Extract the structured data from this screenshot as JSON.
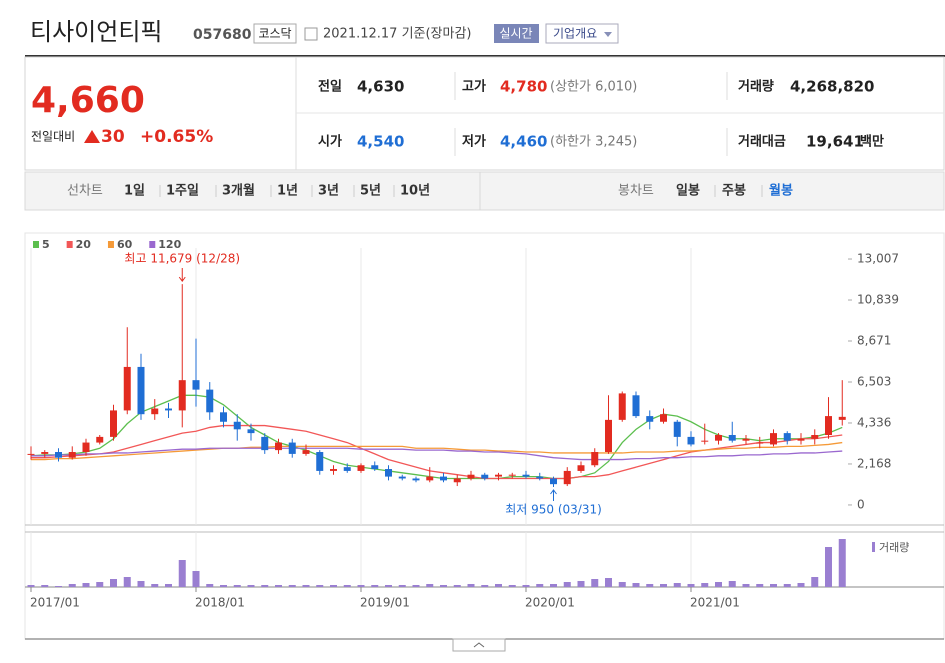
{
  "header": {
    "name": "티사이언티픽",
    "code": "057680",
    "market": "코스닥",
    "date": "2021.12.17 기준(장마감)",
    "realtime": "실시간",
    "overview": "기업개요"
  },
  "quote": {
    "price": "4,660",
    "change_label": "전일대비",
    "change": "30",
    "change_rate": "+0.65%",
    "items": [
      {
        "label": "전일",
        "value": "4,630"
      },
      {
        "label": "고가",
        "value": "4,780",
        "extra": "(상한가 6,010)"
      },
      {
        "label": "거래량",
        "value": "4,268,820"
      },
      {
        "label": "시가",
        "value": "4,540"
      },
      {
        "label": "저가",
        "value": "4,460",
        "extra": "(하한가 3,245)"
      },
      {
        "label": "거래대금",
        "value": "19,641",
        "extra": "백만"
      }
    ]
  },
  "tabs": {
    "line_label": "선차트",
    "line": [
      "1일",
      "1주일",
      "3개월",
      "1년",
      "3년",
      "5년",
      "10년"
    ],
    "candle_label": "봉차트",
    "candle": [
      "일봉",
      "주봉",
      "월봉"
    ]
  },
  "chart_data": {
    "type": "candlestick",
    "categories": [
      "2017/01",
      null,
      null,
      null,
      null,
      null,
      null,
      null,
      null,
      null,
      null,
      null,
      "2018/01",
      null,
      null,
      null,
      null,
      null,
      null,
      null,
      null,
      null,
      null,
      null,
      "2019/01",
      null,
      null,
      null,
      null,
      null,
      null,
      null,
      null,
      null,
      null,
      null,
      "2020/01",
      null,
      null,
      null,
      null,
      null,
      null,
      null,
      null,
      null,
      null,
      null,
      "2021/01",
      null,
      null,
      null,
      null,
      null,
      null,
      null,
      null,
      null,
      null,
      null
    ],
    "open": [
      2700,
      2700,
      2800,
      2500,
      2800,
      3300,
      3600,
      5000,
      7300,
      4800,
      5100,
      5000,
      6600,
      6100,
      4900,
      4400,
      4000,
      3600,
      2900,
      3300,
      2700,
      2800,
      1800,
      2000,
      1800,
      2100,
      1900,
      1500,
      1400,
      1300,
      1500,
      1200,
      1400,
      1600,
      1500,
      1600,
      1600,
      1500,
      1400,
      1100,
      1800,
      2100,
      2800,
      4500,
      5800,
      4700,
      4400,
      4400,
      3600,
      3400,
      3400,
      3700,
      3400,
      3300,
      3200,
      3800,
      3400,
      3500,
      3700,
      4500
    ],
    "high": [
      3100,
      2900,
      3000,
      3100,
      3500,
      3700,
      5300,
      9400,
      8000,
      5600,
      5400,
      11679,
      8800,
      6500,
      5200,
      4800,
      4300,
      3800,
      3500,
      3500,
      3200,
      2900,
      2100,
      2200,
      2200,
      2300,
      2100,
      1600,
      1500,
      2000,
      1700,
      1600,
      1800,
      1700,
      1700,
      1700,
      1800,
      1700,
      1500,
      2000,
      2300,
      3000,
      5800,
      6000,
      6000,
      5000,
      5100,
      4500,
      3900,
      4300,
      3800,
      4400,
      3700,
      3600,
      4000,
      3900,
      3800,
      4000,
      5700,
      6600
    ],
    "low": [
      2400,
      2500,
      2300,
      2400,
      2600,
      3200,
      3400,
      4800,
      4500,
      4500,
      4600,
      4100,
      5200,
      4500,
      4100,
      3400,
      3400,
      2700,
      2700,
      2500,
      2600,
      1600,
      1600,
      1700,
      1700,
      1800,
      1300,
      1300,
      1200,
      1200,
      1200,
      1000,
      1300,
      1300,
      1300,
      1400,
      1400,
      1300,
      950,
      1000,
      1700,
      2000,
      2700,
      4400,
      4600,
      4000,
      4300,
      3100,
      3100,
      3200,
      3200,
      3300,
      3200,
      3000,
      3100,
      3200,
      3200,
      3200,
      3500,
      4200
    ],
    "close": [
      2700,
      2800,
      2500,
      2800,
      3300,
      3600,
      5000,
      7300,
      4800,
      5100,
      5000,
      6600,
      6100,
      4900,
      4400,
      4000,
      3800,
      2900,
      3300,
      2700,
      2900,
      1800,
      1900,
      1800,
      2100,
      1900,
      1500,
      1400,
      1300,
      1500,
      1300,
      1400,
      1600,
      1400,
      1600,
      1600,
      1500,
      1400,
      1100,
      1800,
      2100,
      2800,
      4500,
      5900,
      4700,
      4400,
      4800,
      3600,
      3200,
      3400,
      3700,
      3400,
      3500,
      3300,
      3800,
      3400,
      3500,
      3700,
      4700,
      4660
    ],
    "up_color": "#e22b20",
    "down_color": "#1f6ed4",
    "series": [
      {
        "name": "5",
        "color": "#5cbf4e",
        "values": [
          2600,
          2650,
          2650,
          2700,
          2800,
          3000,
          3500,
          4300,
          4900,
          5200,
          5500,
          5800,
          5800,
          5700,
          5300,
          4700,
          4100,
          3700,
          3300,
          3100,
          2900,
          2600,
          2300,
          2100,
          2000,
          1900,
          1800,
          1700,
          1600,
          1500,
          1400,
          1400,
          1400,
          1400,
          1400,
          1500,
          1500,
          1500,
          1400,
          1400,
          1500,
          1700,
          2300,
          3300,
          4000,
          4500,
          4800,
          4700,
          4400,
          4000,
          3700,
          3500,
          3500,
          3400,
          3500,
          3500,
          3500,
          3600,
          3800,
          4100
        ]
      },
      {
        "name": "20",
        "color": "#f25757",
        "values": [
          2500,
          2500,
          2550,
          2600,
          2650,
          2700,
          2800,
          3000,
          3200,
          3400,
          3600,
          3800,
          3900,
          4100,
          4200,
          4200,
          4200,
          4200,
          4100,
          4000,
          3900,
          3700,
          3500,
          3300,
          3000,
          2700,
          2400,
          2200,
          2000,
          1800,
          1700,
          1600,
          1500,
          1400,
          1400,
          1400,
          1400,
          1400,
          1400,
          1400,
          1500,
          1500,
          1600,
          1800,
          2000,
          2200,
          2400,
          2600,
          2800,
          2900,
          3000,
          3100,
          3200,
          3300,
          3300,
          3400,
          3500,
          3500,
          3600,
          3700
        ]
      },
      {
        "name": "60",
        "color": "#f59a38",
        "values": [
          2400,
          2400,
          2450,
          2450,
          2500,
          2550,
          2600,
          2650,
          2700,
          2750,
          2800,
          2850,
          2900,
          2950,
          3000,
          3000,
          3050,
          3050,
          3100,
          3100,
          3100,
          3100,
          3100,
          3100,
          3100,
          3100,
          3100,
          3100,
          3000,
          3000,
          3000,
          2950,
          2900,
          2900,
          2850,
          2850,
          2800,
          2800,
          2750,
          2750,
          2750,
          2750,
          2750,
          2750,
          2800,
          2800,
          2800,
          2850,
          2850,
          2900,
          2950,
          3000,
          3000,
          3050,
          3050,
          3100,
          3100,
          3150,
          3200,
          3300
        ]
      },
      {
        "name": "120",
        "color": "#9a68cf",
        "values": [
          2600,
          2600,
          2650,
          2650,
          2700,
          2700,
          2750,
          2750,
          2800,
          2850,
          2900,
          2950,
          2950,
          3000,
          3000,
          3000,
          3000,
          3000,
          3000,
          3000,
          3000,
          3000,
          3000,
          3000,
          2950,
          2950,
          2950,
          2950,
          2900,
          2900,
          2900,
          2850,
          2850,
          2800,
          2800,
          2750,
          2700,
          2600,
          2500,
          2450,
          2400,
          2400,
          2400,
          2400,
          2450,
          2450,
          2500,
          2500,
          2550,
          2550,
          2600,
          2600,
          2650,
          2650,
          2700,
          2700,
          2750,
          2750,
          2800,
          2850
        ]
      }
    ],
    "volume": {
      "name": "거래량",
      "color": "#9a7fd1",
      "values": [
        200000,
        200000,
        100000,
        300000,
        400000,
        500000,
        800000,
        1000000,
        600000,
        300000,
        300000,
        2700000,
        1600000,
        300000,
        200000,
        200000,
        200000,
        200000,
        200000,
        200000,
        200000,
        200000,
        200000,
        200000,
        200000,
        200000,
        200000,
        200000,
        200000,
        300000,
        200000,
        200000,
        300000,
        200000,
        300000,
        200000,
        200000,
        300000,
        300000,
        500000,
        600000,
        800000,
        900000,
        500000,
        400000,
        300000,
        300000,
        400000,
        300000,
        400000,
        500000,
        600000,
        300000,
        300000,
        300000,
        300000,
        400000,
        1000000,
        4000000,
        4800000
      ]
    },
    "ylim": [
      -1060,
      13590
    ],
    "yticks": [
      0,
      {
        "value": 2168,
        "label": "2,168"
      },
      {
        "value": 4336,
        "label": "4,336"
      },
      {
        "value": 6503,
        "label": "6,503"
      },
      {
        "value": 8671,
        "label": "8,671"
      },
      {
        "value": 10839,
        "label": "10,839"
      },
      {
        "value": 13007,
        "label": "13,007"
      }
    ],
    "annotations": [
      {
        "index": 11,
        "text": "최고 11,679 (12/28)",
        "color": "#e22b20"
      },
      {
        "index": 38,
        "text": "최저 950 (03/31)",
        "color": "#1f6ed4"
      }
    ]
  }
}
